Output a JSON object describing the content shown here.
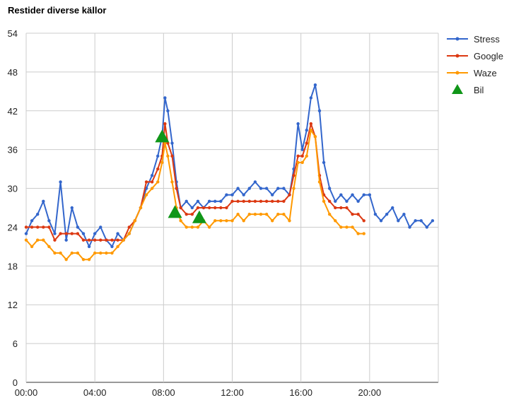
{
  "chart_data": {
    "type": "line",
    "title": "Restider diverse källor",
    "xlabel": "",
    "ylabel": "",
    "xlim": [
      "00:00",
      "24:00"
    ],
    "ylim": [
      0,
      54
    ],
    "x_ticks": [
      "00:00",
      "04:00",
      "08:00",
      "12:00",
      "16:00",
      "20:00"
    ],
    "y_ticks": [
      "0",
      "6",
      "12",
      "18",
      "24",
      "30",
      "36",
      "42",
      "48",
      "54"
    ],
    "grid": true,
    "legend_position": "right",
    "series": [
      {
        "name": "Stress",
        "color": "#3366cc",
        "marker": "circle",
        "x": [
          "00:00",
          "00:20",
          "00:40",
          "01:00",
          "01:20",
          "01:40",
          "02:00",
          "02:20",
          "02:40",
          "03:00",
          "03:20",
          "03:40",
          "04:00",
          "04:20",
          "04:40",
          "05:00",
          "05:20",
          "05:40",
          "06:00",
          "06:20",
          "06:40",
          "07:00",
          "07:20",
          "07:40",
          "07:55",
          "08:05",
          "08:15",
          "08:30",
          "08:45",
          "09:00",
          "09:20",
          "09:40",
          "10:00",
          "10:20",
          "10:40",
          "11:00",
          "11:20",
          "11:40",
          "12:00",
          "12:20",
          "12:40",
          "13:00",
          "13:20",
          "13:40",
          "14:00",
          "14:20",
          "14:40",
          "15:00",
          "15:20",
          "15:35",
          "15:50",
          "16:05",
          "16:20",
          "16:35",
          "16:50",
          "17:05",
          "17:20",
          "17:40",
          "18:00",
          "18:20",
          "18:40",
          "19:00",
          "19:20",
          "19:40",
          "20:00",
          "20:20",
          "20:40",
          "21:00",
          "21:20",
          "21:40",
          "22:00",
          "22:20",
          "22:40",
          "23:00",
          "23:20",
          "23:40"
        ],
        "values": [
          23,
          25,
          26,
          28,
          25,
          23,
          31,
          22,
          27,
          24,
          23,
          21,
          23,
          24,
          22,
          21,
          23,
          22,
          23,
          25,
          27,
          30,
          32,
          35,
          38,
          44,
          42,
          37,
          31,
          27,
          28,
          27,
          28,
          27,
          28,
          28,
          28,
          29,
          29,
          30,
          29,
          30,
          31,
          30,
          30,
          29,
          30,
          30,
          29,
          33,
          40,
          36,
          39,
          44,
          46,
          42,
          34,
          30,
          28,
          29,
          28,
          29,
          28,
          29,
          29,
          26,
          25,
          26,
          27,
          25,
          26,
          24,
          25,
          25,
          24,
          25
        ]
      },
      {
        "name": "Google",
        "color": "#dc3912",
        "marker": "circle",
        "x": [
          "00:00",
          "00:20",
          "00:40",
          "01:00",
          "01:20",
          "01:40",
          "02:00",
          "02:20",
          "02:40",
          "03:00",
          "03:20",
          "03:40",
          "04:00",
          "04:20",
          "04:40",
          "05:00",
          "05:20",
          "05:40",
          "06:00",
          "06:20",
          "06:40",
          "07:00",
          "07:20",
          "07:40",
          "07:55",
          "08:05",
          "08:15",
          "08:30",
          "08:45",
          "09:00",
          "09:20",
          "09:40",
          "10:00",
          "10:20",
          "10:40",
          "11:00",
          "11:20",
          "11:40",
          "12:00",
          "12:20",
          "12:40",
          "13:00",
          "13:20",
          "13:40",
          "14:00",
          "14:20",
          "14:40",
          "15:00",
          "15:20",
          "15:35",
          "15:50",
          "16:05",
          "16:20",
          "16:35",
          "16:50",
          "17:05",
          "17:20",
          "17:40",
          "18:00",
          "18:20",
          "18:40",
          "19:00",
          "19:20",
          "19:40"
        ],
        "values": [
          24,
          24,
          24,
          24,
          24,
          22,
          23,
          23,
          23,
          23,
          22,
          22,
          22,
          22,
          22,
          22,
          22,
          22,
          24,
          25,
          27,
          31,
          31,
          33,
          35,
          40,
          37,
          35,
          30,
          27,
          26,
          26,
          27,
          27,
          27,
          27,
          27,
          27,
          28,
          28,
          28,
          28,
          28,
          28,
          28,
          28,
          28,
          28,
          29,
          32,
          35,
          35,
          37,
          40,
          38,
          32,
          29,
          28,
          27,
          27,
          27,
          26,
          26,
          25
        ]
      },
      {
        "name": "Waze",
        "color": "#ff9900",
        "marker": "circle",
        "x": [
          "00:00",
          "00:20",
          "00:40",
          "01:00",
          "01:20",
          "01:40",
          "02:00",
          "02:20",
          "02:40",
          "03:00",
          "03:20",
          "03:40",
          "04:00",
          "04:20",
          "04:40",
          "05:00",
          "05:20",
          "05:40",
          "06:00",
          "06:20",
          "06:40",
          "07:00",
          "07:20",
          "07:40",
          "07:55",
          "08:05",
          "08:15",
          "08:30",
          "08:45",
          "09:00",
          "09:20",
          "09:40",
          "10:00",
          "10:20",
          "10:40",
          "11:00",
          "11:20",
          "11:40",
          "12:00",
          "12:20",
          "12:40",
          "13:00",
          "13:20",
          "13:40",
          "14:00",
          "14:20",
          "14:40",
          "15:00",
          "15:20",
          "15:35",
          "15:50",
          "16:05",
          "16:20",
          "16:35",
          "16:50",
          "17:05",
          "17:20",
          "17:40",
          "18:00",
          "18:20",
          "18:40",
          "19:00",
          "19:20",
          "19:40"
        ],
        "values": [
          22,
          21,
          22,
          22,
          21,
          20,
          20,
          19,
          20,
          20,
          19,
          19,
          20,
          20,
          20,
          20,
          21,
          22,
          23,
          25,
          27,
          29,
          30,
          31,
          34,
          37,
          35,
          31,
          27,
          25,
          24,
          24,
          24,
          25,
          24,
          25,
          25,
          25,
          25,
          26,
          25,
          26,
          26,
          26,
          26,
          25,
          26,
          26,
          25,
          30,
          34,
          34,
          35,
          39,
          38,
          31,
          28,
          26,
          25,
          24,
          24,
          24,
          23,
          23
        ]
      },
      {
        "name": "Bil",
        "color": "#109618",
        "marker": "triangle",
        "x": [
          "07:55",
          "08:40",
          "10:05"
        ],
        "values": [
          38,
          26.3,
          25.5
        ]
      }
    ]
  }
}
